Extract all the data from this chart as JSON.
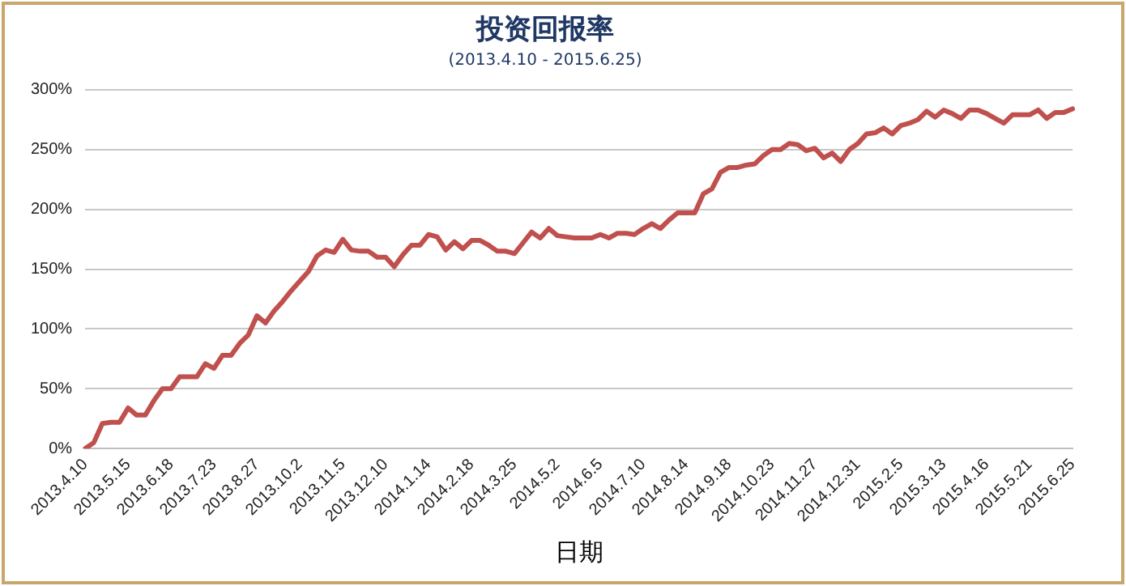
{
  "chart_data": {
    "type": "line",
    "title": "投资回报率",
    "subtitle": "(2013.4.10 - 2015.6.25)",
    "xlabel": "日期",
    "categories": [
      "2013.4.10",
      null,
      null,
      null,
      null,
      "2013.5.15",
      null,
      null,
      null,
      null,
      "2013.6.18",
      null,
      null,
      null,
      null,
      "2013.7.23",
      null,
      null,
      null,
      null,
      "2013.8.27",
      null,
      null,
      null,
      null,
      "2013.10.2",
      null,
      null,
      null,
      null,
      "2013.11.5",
      null,
      null,
      null,
      null,
      "2013.12.10",
      null,
      null,
      null,
      null,
      "2014.1.14",
      null,
      null,
      null,
      null,
      "2014.2.18",
      null,
      null,
      null,
      null,
      "2014.3.25",
      null,
      null,
      null,
      null,
      "2014.5.2",
      null,
      null,
      null,
      null,
      "2014.6.5",
      null,
      null,
      null,
      null,
      "2014.7.10",
      null,
      null,
      null,
      null,
      "2014.8.14",
      null,
      null,
      null,
      null,
      "2014.9.18",
      null,
      null,
      null,
      null,
      "2014.10.23",
      null,
      null,
      null,
      null,
      "2014.11.27",
      null,
      null,
      null,
      null,
      "2014.12.31",
      null,
      null,
      null,
      null,
      "2015.2.5",
      null,
      null,
      null,
      null,
      "2015.3.13",
      null,
      null,
      null,
      null,
      "2015.4.16",
      null,
      null,
      null,
      null,
      "2015.5.21",
      null,
      null,
      null,
      null,
      "2015.6.25"
    ],
    "series": [
      {
        "color": "#c0504d",
        "values": [
          0,
          5,
          21,
          22,
          22,
          34,
          28,
          28,
          40,
          50,
          50,
          60,
          60,
          60,
          71,
          67,
          78,
          78,
          88,
          95,
          111,
          105,
          115,
          123,
          132,
          140,
          148,
          161,
          166,
          164,
          175,
          166,
          165,
          165,
          160,
          160,
          152,
          162,
          170,
          170,
          179,
          177,
          166,
          173,
          167,
          174,
          174,
          170,
          165,
          165,
          163,
          172,
          181,
          176,
          184,
          178,
          177,
          176,
          176,
          176,
          179,
          176,
          180,
          180,
          179,
          184,
          188,
          184,
          191,
          197,
          197,
          197,
          213,
          217,
          231,
          235,
          235,
          237,
          238,
          245,
          250,
          250,
          255,
          254,
          249,
          251,
          243,
          247,
          240,
          250,
          255,
          263,
          264,
          268,
          263,
          270,
          272,
          275,
          282,
          277,
          283,
          280,
          276,
          283,
          283,
          280,
          276,
          272,
          279,
          279,
          279,
          283,
          276,
          281,
          281,
          284
        ]
      }
    ],
    "ylim": [
      0,
      300
    ],
    "yticks": [
      {
        "value": 0,
        "label": "0%"
      },
      {
        "value": 50,
        "label": "50%"
      },
      {
        "value": 100,
        "label": "100%"
      },
      {
        "value": 150,
        "label": "150%"
      },
      {
        "value": 200,
        "label": "200%"
      },
      {
        "value": 250,
        "label": "250%"
      },
      {
        "value": 300,
        "label": "300%"
      }
    ],
    "grid": "y",
    "legend": false,
    "marker": "none",
    "line_style": "solid"
  }
}
